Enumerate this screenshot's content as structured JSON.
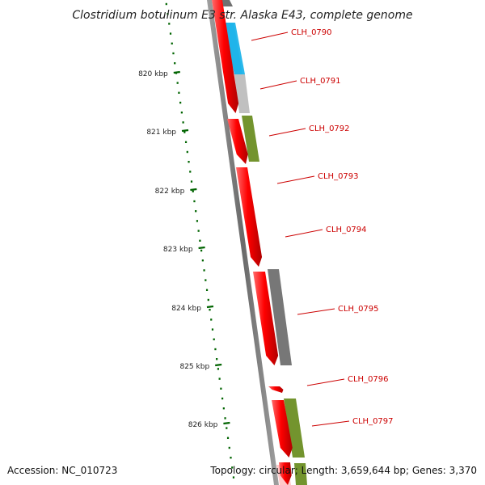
{
  "title": "Clostridium botulinum E3 str. Alaska E43, complete genome",
  "accession": "Accession: NC_010723",
  "summary": "Topology: circular; Length: 3,659,644 bp; Genes: 3,370",
  "ruler": {
    "unit": "kbp",
    "ticks": [
      {
        "label": "820 kbp"
      },
      {
        "label": "821 kbp"
      },
      {
        "label": "822 kbp"
      },
      {
        "label": "823 kbp"
      },
      {
        "label": "824 kbp"
      },
      {
        "label": "825 kbp"
      },
      {
        "label": "826 kbp"
      }
    ]
  },
  "colors": {
    "cds": "#ff0000",
    "backbone": "#808080",
    "ruler": "#006400",
    "label": "#cc0000",
    "cog_blue": "#1fb4ea",
    "cog_lightgray": "#bdbdbd",
    "cog_olive": "#6b8e23",
    "cog_darkgray": "#707070"
  },
  "genes": [
    {
      "label": "CLH_0790",
      "strand": "forward",
      "cog": "cog_blue"
    },
    {
      "label": "CLH_0791",
      "strand": "forward",
      "cog": "cog_lightgray"
    },
    {
      "label": "CLH_0792",
      "strand": "forward",
      "cog": "cog_olive"
    },
    {
      "label": "CLH_0793",
      "strand": "forward",
      "cog": ""
    },
    {
      "label": "CLH_0794",
      "strand": "forward",
      "cog": ""
    },
    {
      "label": "CLH_0795",
      "strand": "forward",
      "cog": "cog_darkgray"
    },
    {
      "label": "CLH_0796",
      "strand": "forward",
      "cog": ""
    },
    {
      "label": "CLH_0797",
      "strand": "forward",
      "cog": "cog_olive"
    }
  ]
}
